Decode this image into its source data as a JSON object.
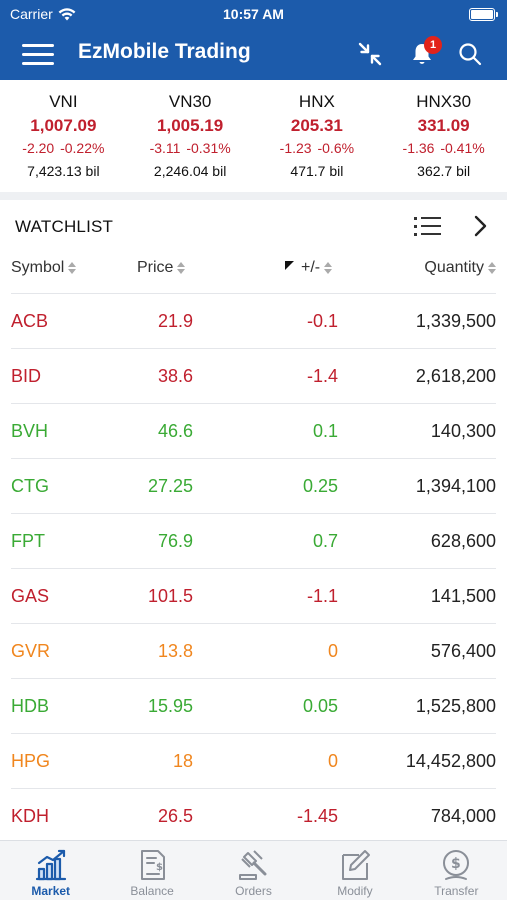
{
  "status_bar": {
    "carrier": "Carrier",
    "time": "10:57 AM"
  },
  "header": {
    "title": "EzMobile Trading",
    "notification_count": "1"
  },
  "indices": [
    {
      "name": "VNI",
      "value": "1,007.09",
      "change": "-2.20",
      "percent": "-0.22%",
      "volume": "7,423.13 bil"
    },
    {
      "name": "VN30",
      "value": "1,005.19",
      "change": "-3.11",
      "percent": "-0.31%",
      "volume": "2,246.04 bil"
    },
    {
      "name": "HNX",
      "value": "205.31",
      "change": "-1.23",
      "percent": "-0.6%",
      "volume": "471.7 bil"
    },
    {
      "name": "HNX30",
      "value": "331.09",
      "change": "-1.36",
      "percent": "-0.41%",
      "volume": "362.7 bil"
    }
  ],
  "watchlist": {
    "title": "WATCHLIST",
    "columns": {
      "symbol": "Symbol",
      "price": "Price",
      "change": "+/-",
      "quantity": "Quantity"
    },
    "rows": [
      {
        "symbol": "ACB",
        "price": "21.9",
        "change": "-0.1",
        "quantity": "1,339,500",
        "color": "#c0202e"
      },
      {
        "symbol": "BID",
        "price": "38.6",
        "change": "-1.4",
        "quantity": "2,618,200",
        "color": "#c0202e"
      },
      {
        "symbol": "BVH",
        "price": "46.6",
        "change": "0.1",
        "quantity": "140,300",
        "color": "#3aaa35"
      },
      {
        "symbol": "CTG",
        "price": "27.25",
        "change": "0.25",
        "quantity": "1,394,100",
        "color": "#3aaa35"
      },
      {
        "symbol": "FPT",
        "price": "76.9",
        "change": "0.7",
        "quantity": "628,600",
        "color": "#3aaa35"
      },
      {
        "symbol": "GAS",
        "price": "101.5",
        "change": "-1.1",
        "quantity": "141,500",
        "color": "#c0202e"
      },
      {
        "symbol": "GVR",
        "price": "13.8",
        "change": "0",
        "quantity": "576,400",
        "color": "#f0861e"
      },
      {
        "symbol": "HDB",
        "price": "15.95",
        "change": "0.05",
        "quantity": "1,525,800",
        "color": "#3aaa35"
      },
      {
        "symbol": "HPG",
        "price": "18",
        "change": "0",
        "quantity": "14,452,800",
        "color": "#f0861e"
      },
      {
        "symbol": "KDH",
        "price": "26.5",
        "change": "-1.45",
        "quantity": "784,000",
        "color": "#c0202e"
      }
    ]
  },
  "tabs": [
    {
      "label": "Market",
      "icon": "chart-icon",
      "active": true
    },
    {
      "label": "Balance",
      "icon": "document-dollar-icon",
      "active": false
    },
    {
      "label": "Orders",
      "icon": "gavel-icon",
      "active": false
    },
    {
      "label": "Modify",
      "icon": "edit-icon",
      "active": false
    },
    {
      "label": "Transfer",
      "icon": "dollar-transfer-icon",
      "active": false
    }
  ],
  "colors": {
    "brand": "#1c5bab",
    "down": "#c0202e",
    "up": "#3aaa35",
    "ref": "#f0861e",
    "badge": "#e2231a"
  }
}
